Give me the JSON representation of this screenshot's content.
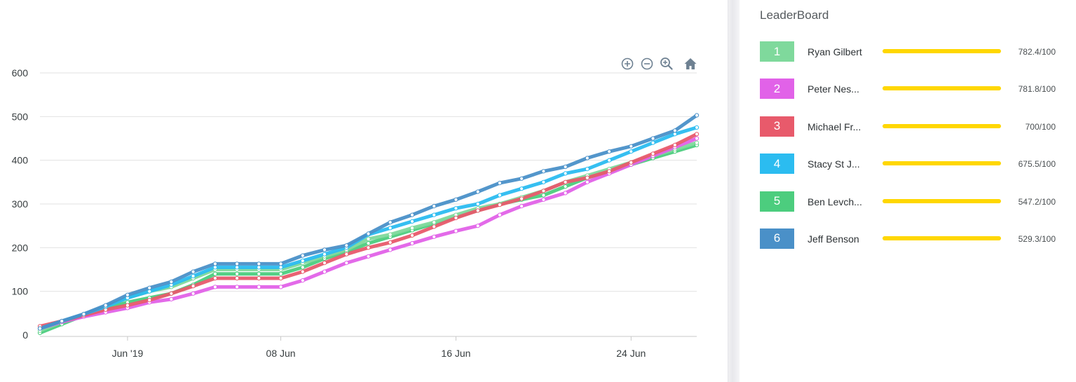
{
  "chart_data": {
    "type": "line",
    "title": "",
    "xlabel": "",
    "ylabel": "",
    "ylim": [
      0,
      600
    ],
    "yticks": [
      0,
      100,
      200,
      300,
      400,
      500,
      600
    ],
    "x_start": "2019-05-28",
    "x_end": "2019-06-27",
    "x": [
      "2019-05-28",
      "2019-05-29",
      "2019-05-30",
      "2019-05-31",
      "2019-06-01",
      "2019-06-02",
      "2019-06-03",
      "2019-06-04",
      "2019-06-05",
      "2019-06-06",
      "2019-06-07",
      "2019-06-08",
      "2019-06-09",
      "2019-06-10",
      "2019-06-11",
      "2019-06-12",
      "2019-06-13",
      "2019-06-14",
      "2019-06-15",
      "2019-06-16",
      "2019-06-17",
      "2019-06-18",
      "2019-06-19",
      "2019-06-20",
      "2019-06-21",
      "2019-06-22",
      "2019-06-23",
      "2019-06-24",
      "2019-06-25",
      "2019-06-26",
      "2019-06-27"
    ],
    "xtick_labels": [
      {
        "date": "2019-06-01",
        "label": "Jun '19"
      },
      {
        "date": "2019-06-08",
        "label": "08 Jun"
      },
      {
        "date": "2019-06-16",
        "label": "16 Jun"
      },
      {
        "date": "2019-06-24",
        "label": "24 Jun"
      }
    ],
    "grid": true,
    "series": [
      {
        "name": "Ben Levch...",
        "color": "#4ccd7e",
        "values": [
          5,
          25,
          45,
          60,
          75,
          85,
          95,
          115,
          140,
          140,
          140,
          140,
          155,
          175,
          190,
          210,
          225,
          240,
          255,
          270,
          285,
          300,
          310,
          320,
          340,
          360,
          375,
          390,
          405,
          420,
          435
        ]
      },
      {
        "name": "Ryan Gilbert",
        "color": "#7fd99c",
        "values": [
          10,
          30,
          48,
          65,
          85,
          100,
          110,
          130,
          150,
          150,
          150,
          150,
          165,
          180,
          195,
          220,
          230,
          245,
          258,
          275,
          290,
          300,
          315,
          330,
          350,
          365,
          380,
          395,
          410,
          425,
          440
        ]
      },
      {
        "name": "Peter Nes...",
        "color": "#e162e8",
        "values": [
          15,
          30,
          42,
          52,
          62,
          75,
          82,
          95,
          110,
          110,
          110,
          110,
          125,
          145,
          165,
          180,
          195,
          210,
          225,
          238,
          250,
          275,
          295,
          310,
          325,
          350,
          370,
          390,
          410,
          430,
          450
        ]
      },
      {
        "name": "Michael Fr...",
        "color": "#e85a6b",
        "values": [
          20,
          32,
          45,
          58,
          68,
          80,
          95,
          112,
          130,
          130,
          130,
          130,
          145,
          165,
          185,
          200,
          212,
          228,
          248,
          268,
          285,
          298,
          312,
          330,
          350,
          360,
          375,
          395,
          415,
          435,
          460
        ]
      },
      {
        "name": "Stacy St J...",
        "color": "#2bbcf0",
        "values": [
          15,
          32,
          48,
          65,
          85,
          100,
          115,
          135,
          155,
          155,
          155,
          155,
          170,
          185,
          200,
          230,
          245,
          260,
          275,
          290,
          300,
          320,
          335,
          350,
          370,
          380,
          400,
          420,
          440,
          460,
          475
        ]
      },
      {
        "name": "Jeff Benson",
        "color": "#4a90c8",
        "values": [
          15,
          32,
          48,
          68,
          92,
          108,
          122,
          145,
          163,
          163,
          163,
          163,
          182,
          195,
          205,
          232,
          258,
          275,
          295,
          310,
          328,
          348,
          358,
          375,
          385,
          405,
          420,
          432,
          450,
          468,
          503
        ]
      }
    ]
  },
  "toolbar": {
    "icons": [
      "zoom-in-icon",
      "zoom-out-icon",
      "zoom-reset-icon",
      "home-icon"
    ]
  },
  "leaderboard": {
    "title": "LeaderBoard",
    "bar_color": "#ffd700",
    "entries": [
      {
        "rank": "1",
        "name": "Ryan Gilbert",
        "score": "782.4/100",
        "color": "#7fd99c",
        "progress": 1.0
      },
      {
        "rank": "2",
        "name": "Peter Nes...",
        "score": "781.8/100",
        "color": "#e162e8",
        "progress": 1.0
      },
      {
        "rank": "3",
        "name": "Michael Fr...",
        "score": "700/100",
        "color": "#e85a6b",
        "progress": 1.0
      },
      {
        "rank": "4",
        "name": "Stacy St J...",
        "score": "675.5/100",
        "color": "#2bbcf0",
        "progress": 1.0
      },
      {
        "rank": "5",
        "name": "Ben Levch...",
        "score": "547.2/100",
        "color": "#4ccd7e",
        "progress": 1.0
      },
      {
        "rank": "6",
        "name": "Jeff Benson",
        "score": "529.3/100",
        "color": "#4a90c8",
        "progress": 1.0
      }
    ]
  }
}
